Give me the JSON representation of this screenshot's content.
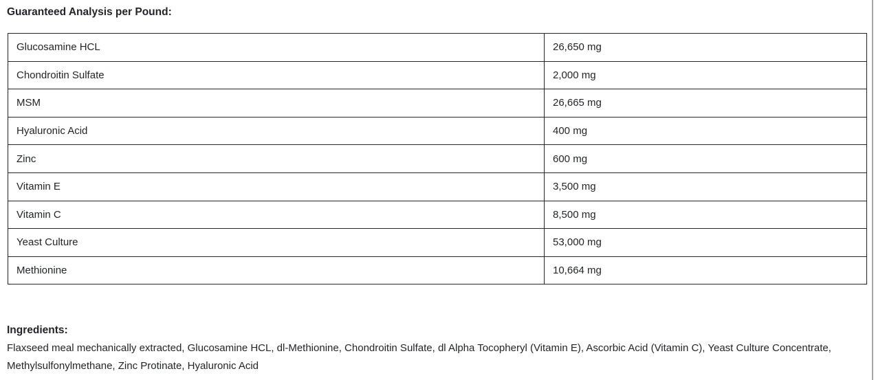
{
  "page": {
    "analysis_heading": "Guaranteed Analysis per Pound:",
    "ingredients_heading": "Ingredients:",
    "ingredients_text": "Flaxseed meal mechanically extracted, Glucosamine HCL, dl-Methionine, Chondroitin Sulfate, dl Alpha Tocopheryl (Vitamin E), Ascorbic Acid (Vitamin C), Yeast Culture Concentrate, Methylsulfonylmethane, Zinc Protinate, Hyaluronic Acid"
  },
  "guaranteed_analysis": {
    "unit": "mg",
    "rows": [
      {
        "nutrient": "Glucosamine HCL",
        "amount": "26,650 mg"
      },
      {
        "nutrient": "Chondroitin Sulfate",
        "amount": "2,000 mg"
      },
      {
        "nutrient": "MSM",
        "amount": "26,665 mg"
      },
      {
        "nutrient": "Hyaluronic Acid",
        "amount": "400 mg"
      },
      {
        "nutrient": "Zinc",
        "amount": "600 mg"
      },
      {
        "nutrient": "Vitamin E",
        "amount": "3,500 mg"
      },
      {
        "nutrient": "Vitamin C",
        "amount": "8,500 mg"
      },
      {
        "nutrient": "Yeast Culture",
        "amount": "53,000 mg"
      },
      {
        "nutrient": "Methionine",
        "amount": "10,664 mg"
      }
    ]
  },
  "colors": {
    "text": "#212529",
    "table_border": "#212529",
    "page_edge_line": "#a6a6a6"
  }
}
